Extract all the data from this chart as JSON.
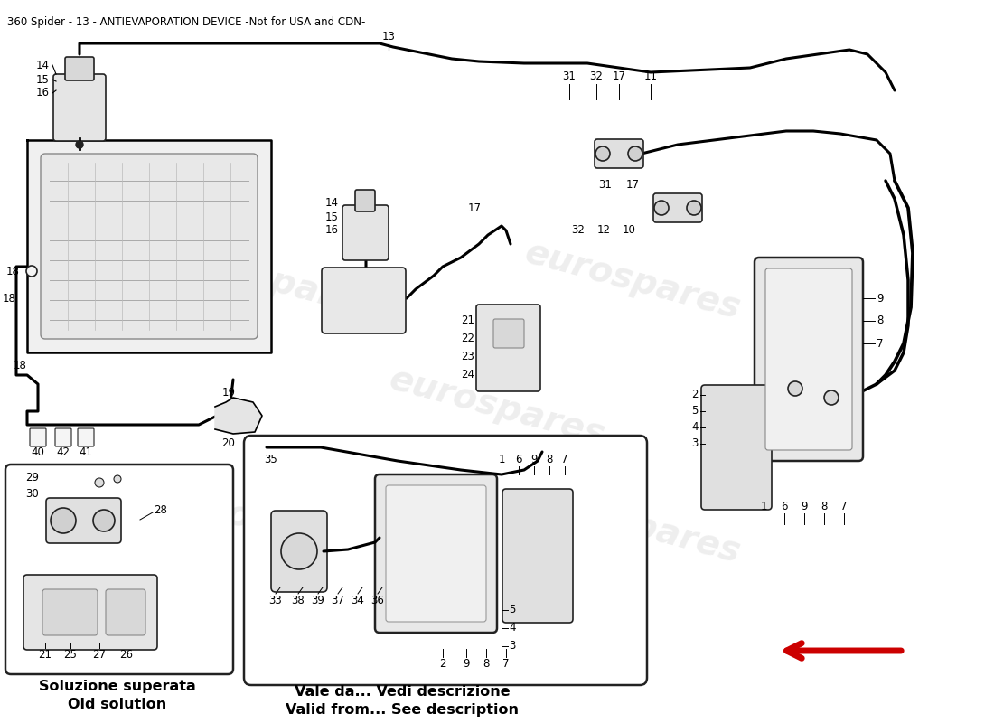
{
  "title": "360 Spider - 13 - ANTIEVAPORATION DEVICE -Not for USA and CDN-",
  "title_fontsize": 8.5,
  "background_color": "#ffffff",
  "watermark_text": "eurospares",
  "watermark_color": "#c8c8c8",
  "watermark_alpha": 0.3,
  "left_box_label1": "Soluzione superata",
  "left_box_label2": "Old solution",
  "right_box_label1": "Vale da... Vedi descrizione",
  "right_box_label2": "Valid from... See description",
  "label_fontsize": 11.5,
  "arrow_color": "#cc0000"
}
